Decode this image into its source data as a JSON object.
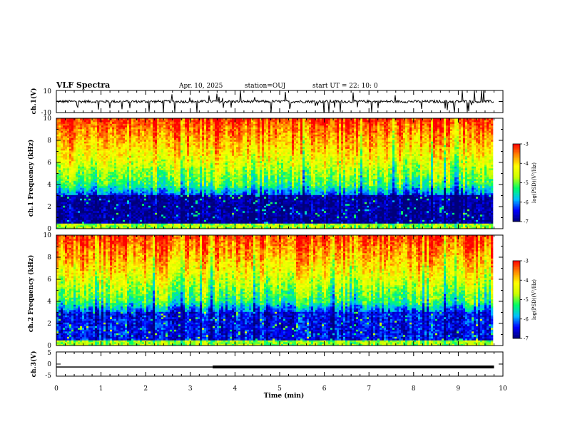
{
  "header": {
    "title": "VLF Spectra",
    "date": "Apr. 10, 2025",
    "station": "station=OUJ",
    "start": "start UT =   22: 10: 0"
  },
  "colors": {
    "spectrum_stops": [
      "#00007a",
      "#0000ff",
      "#00bfff",
      "#00ff66",
      "#ccff00",
      "#ffff00",
      "#ff8800",
      "#ff0000"
    ],
    "trace": "#000000"
  },
  "chart_data": [
    {
      "type": "line",
      "name": "ch1-waveform",
      "ylabel": "ch.1(V)",
      "xlim": [
        0,
        10
      ],
      "ylim": [
        -10,
        10
      ],
      "y_ticks": [
        "10",
        "-10"
      ],
      "trace": {
        "x_end": 9.8,
        "baseline": 0,
        "noise_amplitude": 1.2,
        "spike_amplitude": 8
      }
    },
    {
      "type": "heatmap",
      "name": "ch1-spectrogram",
      "ylabel": "ch.1 Frequency (kHz)",
      "xlim": [
        0,
        10
      ],
      "ylim": [
        0,
        10
      ],
      "y_ticks": [
        "0",
        "2",
        "4",
        "6",
        "8",
        "10"
      ],
      "x_end": 9.8,
      "colorbar": {
        "label": "log(PSD)(V²/Hz)",
        "range": [
          -7,
          -3
        ],
        "ticks": [
          "-3",
          "-4",
          "-5",
          "-6",
          "-7"
        ]
      }
    },
    {
      "type": "heatmap",
      "name": "ch2-spectrogram",
      "ylabel": "ch.2 Frequency (kHz)",
      "xlim": [
        0,
        10
      ],
      "ylim": [
        0,
        10
      ],
      "y_ticks": [
        "0",
        "2",
        "4",
        "6",
        "8",
        "10"
      ],
      "x_end": 9.8,
      "colorbar": {
        "label": "log(PSD)(V²/Hz)",
        "range": [
          -7,
          -3
        ],
        "ticks": [
          "-3",
          "-4",
          "-5",
          "-6",
          "-7"
        ]
      }
    },
    {
      "type": "line",
      "name": "ch3-level",
      "ylabel": "ch.3(V)",
      "xlim": [
        0,
        10
      ],
      "ylim": [
        -5,
        5
      ],
      "y_ticks": [
        "5",
        "0",
        "-5"
      ],
      "x": [
        0,
        3.5,
        3.5,
        9.8
      ],
      "y": [
        -1.2,
        -1.2,
        -1.2,
        -1.2
      ],
      "thick_from": 3.5
    }
  ],
  "x_axis": {
    "label": "Time (min)",
    "ticks": [
      "0",
      "1",
      "2",
      "3",
      "4",
      "5",
      "6",
      "7",
      "8",
      "9",
      "10"
    ]
  }
}
